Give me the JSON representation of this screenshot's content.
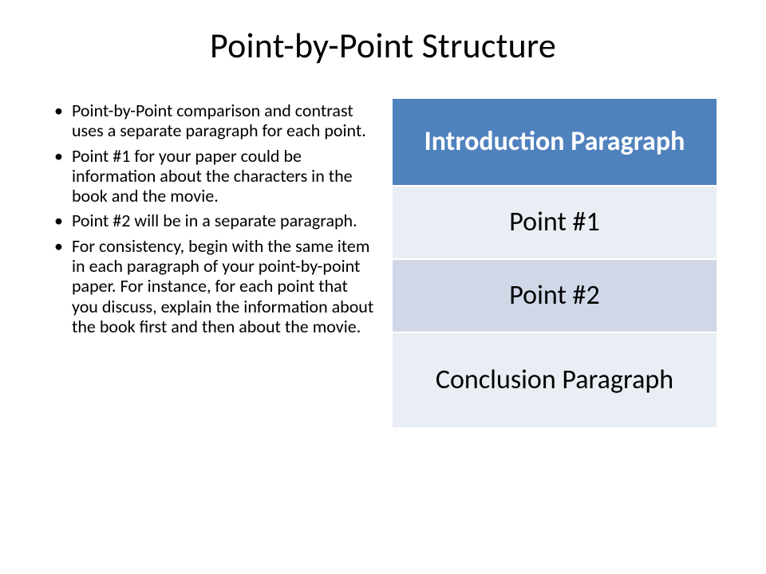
{
  "title": "Point-by-Point Structure",
  "bullets": [
    "Point-by-Point comparison and contrast uses a separate paragraph for each point.",
    "Point #1 for your paper could be information about the characters in the book and the movie.",
    "Point #2 will be in a separate paragraph.",
    "For consistency, begin with the same item in each paragraph of your point-by-point paper. For instance, for each point that you discuss, explain the information about the book first and then about the movie."
  ],
  "structure": {
    "rows": [
      {
        "label": "Introduction Paragraph",
        "bg": "#4f81bd",
        "fg": "#ffffff",
        "bold": true,
        "heightClass": "row-header"
      },
      {
        "label": "Point #1",
        "bg": "#e9edf4",
        "fg": "#000000",
        "bold": false,
        "heightClass": "row-body"
      },
      {
        "label": "Point #2",
        "bg": "#d0d8e8",
        "fg": "#000000",
        "bold": false,
        "heightClass": "row-body"
      },
      {
        "label": "Conclusion Paragraph",
        "bg": "#e9edf4",
        "fg": "#000000",
        "bold": false,
        "heightClass": "row-conclusion"
      }
    ]
  }
}
